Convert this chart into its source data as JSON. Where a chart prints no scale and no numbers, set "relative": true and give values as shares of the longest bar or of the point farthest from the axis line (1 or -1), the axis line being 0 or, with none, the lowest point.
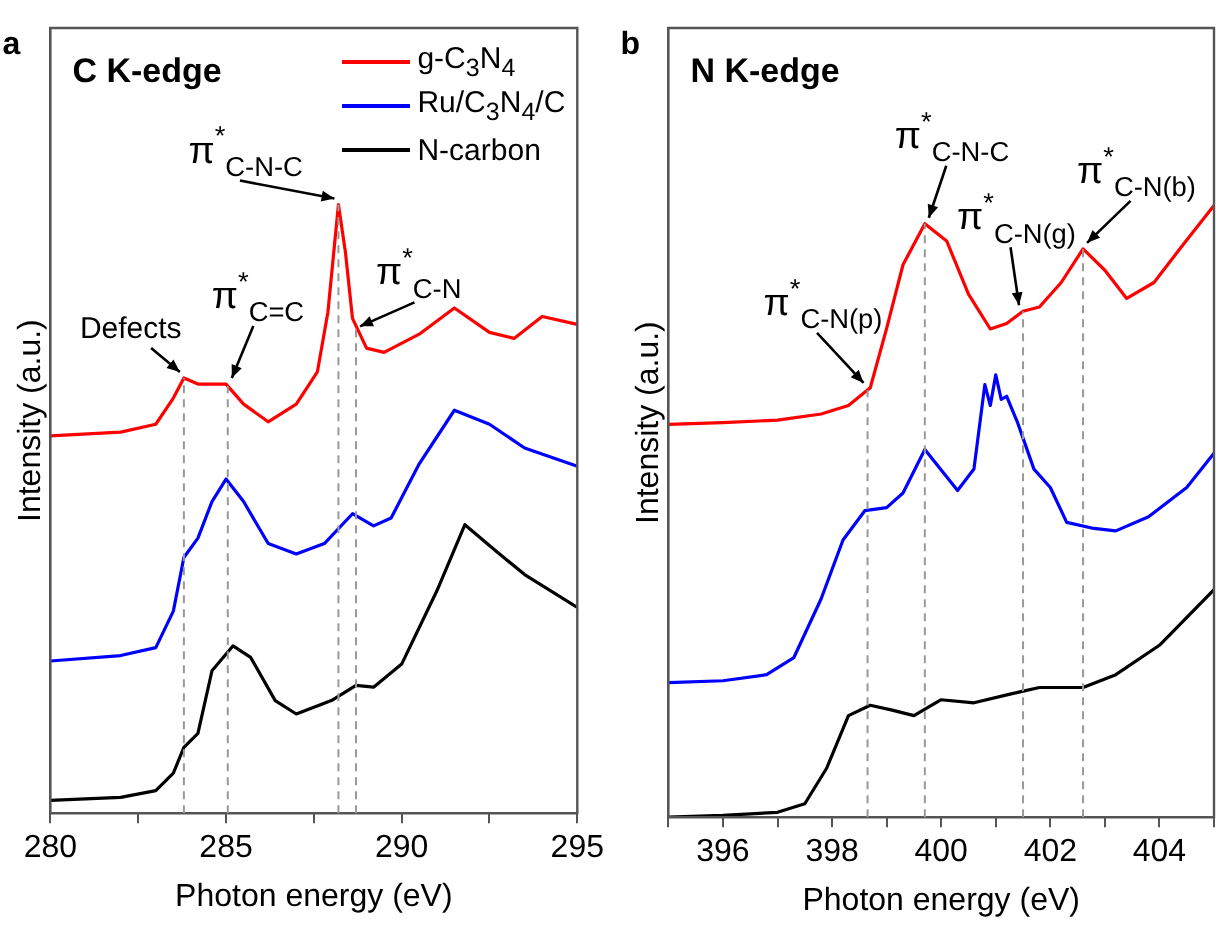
{
  "chart_data": [
    {
      "type": "line",
      "title": "C K-edge",
      "xlabel": "Photon energy (eV)",
      "ylabel": "Intensity (a.u.)",
      "relative": true,
      "tick_labels": "x",
      "legend": "top right",
      "xlim": [
        280,
        295
      ],
      "xticks": [
        280,
        {
          "value": 282.5,
          "label": null
        },
        285,
        {
          "value": 287.5,
          "label": null
        },
        290,
        {
          "value": 292.5,
          "label": null
        },
        295
      ],
      "series": [
        {
          "name": "g-C$_{3}$N$_{4}$",
          "color": "#ff0000",
          "x": [
            280,
            282,
            283,
            283.5,
            283.8,
            284.2,
            285,
            285.5,
            286.2,
            287,
            287.6,
            287.9,
            288.2,
            288.4,
            288.6,
            289,
            289.5,
            290.5,
            291.5,
            292.5,
            293.2,
            294,
            295
          ],
          "values": [
            0.62,
            0.626,
            0.639,
            0.682,
            0.715,
            0.705,
            0.705,
            0.672,
            0.643,
            0.672,
            0.725,
            0.823,
            1,
            0.921,
            0.813,
            0.764,
            0.757,
            0.787,
            0.83,
            0.79,
            0.78,
            0.816,
            0.803
          ]
        },
        {
          "name": "Ru/C$_{3}$N$_{4}$/C",
          "color": "#0000ff",
          "x": [
            280,
            282,
            283,
            283.5,
            283.8,
            284.2,
            284.6,
            285,
            285.5,
            286.2,
            287,
            287.8,
            288.6,
            289.2,
            289.7,
            290.5,
            291.5,
            292.5,
            293.5,
            295
          ],
          "values": [
            0.25,
            0.259,
            0.272,
            0.332,
            0.42,
            0.452,
            0.512,
            0.549,
            0.512,
            0.443,
            0.426,
            0.443,
            0.492,
            0.472,
            0.485,
            0.574,
            0.662,
            0.639,
            0.6,
            0.57
          ]
        },
        {
          "name": "N-carbon",
          "color": "#000000",
          "x": [
            280,
            282,
            283,
            283.5,
            283.8,
            284.2,
            284.6,
            285.2,
            285.7,
            286.4,
            287,
            288,
            288.7,
            289.2,
            290,
            291,
            291.8,
            292.7,
            293.5,
            295
          ],
          "values": [
            0.021,
            0.026,
            0.037,
            0.066,
            0.108,
            0.131,
            0.234,
            0.275,
            0.256,
            0.185,
            0.163,
            0.185,
            0.21,
            0.207,
            0.245,
            0.365,
            0.474,
            0.43,
            0.392,
            0.338
          ]
        }
      ],
      "ref_lines": [
        {
          "axis": "x",
          "value": 283.8,
          "color": "#999999",
          "line_style": "dashed"
        },
        {
          "axis": "x",
          "value": 285.05,
          "color": "#999999",
          "line_style": "dashed"
        },
        {
          "axis": "x",
          "value": 288.2,
          "color": "#999999",
          "line_style": "dashed"
        },
        {
          "axis": "x",
          "value": 288.7,
          "color": "#999999",
          "line_style": "dashed"
        }
      ],
      "annotations": [
        "a",
        {
          "text": "Defects",
          "x": 283.8,
          "y": 0.715
        },
        {
          "text": "π$^{*}$$_{C=C}$",
          "x": 285.05,
          "y": 0.705
        },
        {
          "text": "π$^{*}$$_{C-N-C}$",
          "x": 288.2,
          "y": 1
        },
        {
          "text": "π$^{*}$$_{C-N}$",
          "x": 288.7,
          "y": 0.79
        }
      ]
    },
    {
      "type": "line",
      "title": "N K-edge",
      "xlabel": "Photon energy (eV)",
      "ylabel": "Intensity (a.u.)",
      "relative": true,
      "tick_labels": "x",
      "xlim": [
        395,
        405
      ],
      "xticks": [
        {
          "value": 395,
          "label": null
        },
        396,
        {
          "value": 397,
          "label": null
        },
        398,
        {
          "value": 399,
          "label": null
        },
        400,
        {
          "value": 401,
          "label": null
        },
        402,
        {
          "value": 403,
          "label": null
        },
        404,
        {
          "value": 405,
          "label": null
        }
      ],
      "series": [
        {
          "color": "#ff0000",
          "x": [
            395,
            396,
            397,
            397.8,
            398.3,
            398.7,
            399,
            399.3,
            399.7,
            400.1,
            400.5,
            400.9,
            401.2,
            401.5,
            401.8,
            402.2,
            402.6,
            403,
            403.4,
            403.9,
            404.4,
            405
          ],
          "values": [
            0.642,
            0.645,
            0.649,
            0.659,
            0.673,
            0.702,
            0.799,
            0.903,
            0.97,
            0.942,
            0.855,
            0.798,
            0.807,
            0.827,
            0.834,
            0.874,
            0.929,
            0.894,
            0.848,
            0.874,
            0.932,
            1
          ]
        },
        {
          "color": "#0000ff",
          "x": [
            395,
            396,
            396.8,
            397.3,
            397.8,
            398.2,
            398.6,
            399,
            399.3,
            399.7,
            400.3,
            400.6,
            400.8,
            400.9,
            401,
            401.1,
            401.2,
            401.4,
            401.7,
            402,
            402.3,
            402.8,
            403.2,
            403.8,
            404.5,
            405
          ],
          "values": [
            0.22,
            0.223,
            0.233,
            0.261,
            0.357,
            0.453,
            0.501,
            0.506,
            0.53,
            0.601,
            0.534,
            0.569,
            0.707,
            0.673,
            0.723,
            0.683,
            0.688,
            0.645,
            0.569,
            0.539,
            0.482,
            0.472,
            0.468,
            0.491,
            0.539,
            0.595
          ]
        },
        {
          "color": "#000000",
          "x": [
            395,
            396,
            397,
            397.5,
            397.9,
            398.3,
            398.7,
            399.1,
            399.5,
            400,
            400.6,
            401.3,
            401.8,
            402.6,
            403.2,
            404,
            405
          ],
          "values": [
            0,
            0.003,
            0.008,
            0.022,
            0.08,
            0.166,
            0.183,
            0.175,
            0.166,
            0.192,
            0.187,
            0.202,
            0.212,
            0.212,
            0.233,
            0.281,
            0.372
          ]
        }
      ],
      "ref_lines": [
        {
          "axis": "x",
          "value": 398.65,
          "color": "#999999",
          "line_style": "dashed"
        },
        {
          "axis": "x",
          "value": 399.7,
          "color": "#999999",
          "line_style": "dashed"
        },
        {
          "axis": "x",
          "value": 401.5,
          "color": "#999999",
          "line_style": "dashed"
        },
        {
          "axis": "x",
          "value": 402.6,
          "color": "#999999",
          "line_style": "dashed"
        }
      ],
      "annotations": [
        "b",
        {
          "text": "π$^{*}$$_{C-N(p)}$",
          "x": 398.65,
          "y": 0.7
        },
        {
          "text": "π$^{*}$$_{C-N-C}$",
          "x": 399.7,
          "y": 0.97
        },
        {
          "text": "π$^{*}$$_{C-N(g)}$",
          "x": 401.5,
          "y": 0.827
        },
        {
          "text": "π$^{*}$$_{C-N(b)}$",
          "x": 402.6,
          "y": 0.929
        }
      ]
    }
  ]
}
